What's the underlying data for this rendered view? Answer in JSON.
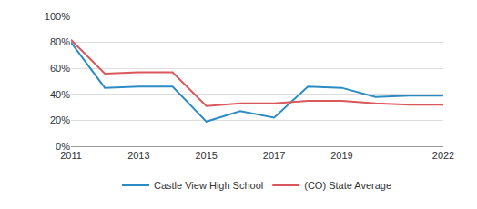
{
  "chart_data": {
    "type": "line",
    "x": [
      2011,
      2012,
      2013,
      2014,
      2015,
      2016,
      2017,
      2018,
      2019,
      2020,
      2021,
      2022
    ],
    "series": [
      {
        "name": "Castle View High School",
        "color": "#2b8cc4",
        "values": [
          80,
          45,
          46,
          46,
          19,
          27,
          22,
          46,
          45,
          38,
          39,
          39
        ]
      },
      {
        "name": "(CO) State Average",
        "color": "#d9585b",
        "values": [
          82,
          56,
          57,
          57,
          31,
          33,
          33,
          35,
          35,
          33,
          32,
          32
        ]
      }
    ],
    "xlim": [
      2011,
      2022
    ],
    "xticks": [
      2011,
      2013,
      2015,
      2017,
      2019,
      2022
    ],
    "ylim": [
      0,
      100
    ],
    "yticks": [
      {
        "value": 0,
        "label": "0%"
      },
      {
        "value": 20,
        "label": "20%"
      },
      {
        "value": 40,
        "label": "40%"
      },
      {
        "value": 60,
        "label": "60%"
      },
      {
        "value": 80,
        "label": "80%"
      },
      {
        "value": 100,
        "label": "100%"
      }
    ],
    "grid": true,
    "legend": "bottom"
  }
}
